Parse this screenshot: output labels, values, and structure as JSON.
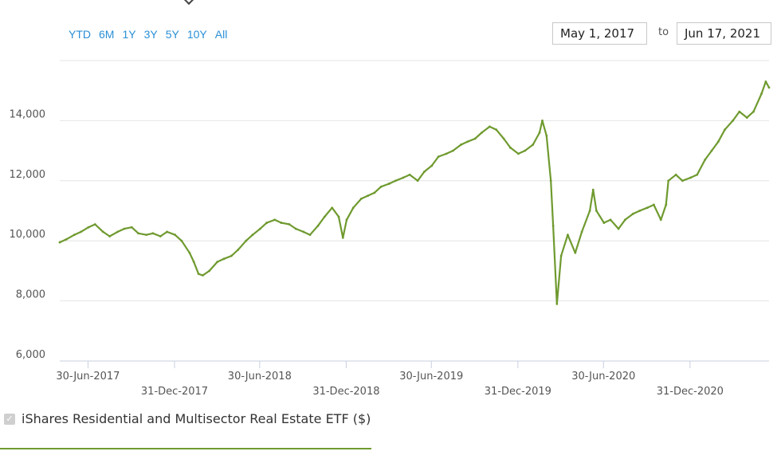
{
  "range_buttons": [
    "YTD",
    "6M",
    "1Y",
    "3Y",
    "5Y",
    "10Y",
    "All"
  ],
  "date_range": {
    "from": "May 1, 2017",
    "to_label": "to",
    "to": "Jun 17, 2021"
  },
  "legend": {
    "label": "iShares Residential and Multisector Real Estate ETF ($)",
    "checked": true
  },
  "chart_data": {
    "type": "line",
    "title": "",
    "xlabel": "",
    "ylabel": "",
    "ylim": [
      6000,
      16000
    ],
    "yticks": [
      "6,000",
      "8,000",
      "10,000",
      "12,000",
      "14,000"
    ],
    "xticks": [
      "30-Jun-2017",
      "31-Dec-2017",
      "30-Jun-2018",
      "31-Dec-2018",
      "30-Jun-2019",
      "31-Dec-2019",
      "30-Jun-2020",
      "31-Dec-2020"
    ],
    "xlim": [
      "2017-05-01",
      "2021-06-17"
    ],
    "grid": true,
    "line_color": "#6f9a2f",
    "series": [
      {
        "name": "iShares Residential and Multisector Real Estate ETF ($)",
        "x": [
          "2017-05-01",
          "2017-05-15",
          "2017-06-01",
          "2017-06-15",
          "2017-07-01",
          "2017-07-15",
          "2017-08-01",
          "2017-08-15",
          "2017-09-01",
          "2017-09-15",
          "2017-10-01",
          "2017-10-15",
          "2017-11-01",
          "2017-11-15",
          "2017-12-01",
          "2017-12-15",
          "2018-01-01",
          "2018-01-15",
          "2018-02-01",
          "2018-02-10",
          "2018-02-20",
          "2018-03-01",
          "2018-03-15",
          "2018-04-01",
          "2018-04-15",
          "2018-05-01",
          "2018-05-15",
          "2018-06-01",
          "2018-06-15",
          "2018-07-01",
          "2018-07-15",
          "2018-08-01",
          "2018-08-15",
          "2018-09-01",
          "2018-09-15",
          "2018-10-01",
          "2018-10-15",
          "2018-11-01",
          "2018-11-15",
          "2018-12-01",
          "2018-12-15",
          "2018-12-24",
          "2019-01-01",
          "2019-01-15",
          "2019-02-01",
          "2019-02-15",
          "2019-03-01",
          "2019-03-15",
          "2019-04-01",
          "2019-04-15",
          "2019-05-01",
          "2019-05-15",
          "2019-06-01",
          "2019-06-15",
          "2019-07-01",
          "2019-07-15",
          "2019-08-01",
          "2019-08-15",
          "2019-09-01",
          "2019-09-15",
          "2019-10-01",
          "2019-10-15",
          "2019-11-01",
          "2019-11-15",
          "2019-12-01",
          "2019-12-15",
          "2020-01-01",
          "2020-01-15",
          "2020-02-01",
          "2020-02-15",
          "2020-02-21",
          "2020-03-01",
          "2020-03-10",
          "2020-03-15",
          "2020-03-23",
          "2020-04-01",
          "2020-04-15",
          "2020-05-01",
          "2020-05-15",
          "2020-06-01",
          "2020-06-08",
          "2020-06-15",
          "2020-07-01",
          "2020-07-15",
          "2020-08-01",
          "2020-08-15",
          "2020-09-01",
          "2020-09-15",
          "2020-10-01",
          "2020-10-15",
          "2020-10-30",
          "2020-11-10",
          "2020-11-15",
          "2020-12-01",
          "2020-12-15",
          "2021-01-01",
          "2021-01-15",
          "2021-02-01",
          "2021-02-15",
          "2021-03-01",
          "2021-03-15",
          "2021-04-01",
          "2021-04-15",
          "2021-05-01",
          "2021-05-15",
          "2021-06-01",
          "2021-06-10",
          "2021-06-17"
        ],
        "values": [
          9950,
          10050,
          10200,
          10300,
          10450,
          10550,
          10300,
          10150,
          10300,
          10400,
          10450,
          10250,
          10200,
          10250,
          10150,
          10300,
          10200,
          10000,
          9600,
          9300,
          8900,
          8850,
          9000,
          9300,
          9400,
          9500,
          9700,
          10000,
          10200,
          10400,
          10600,
          10700,
          10600,
          10550,
          10400,
          10300,
          10200,
          10500,
          10800,
          11100,
          10800,
          10100,
          10700,
          11100,
          11400,
          11500,
          11600,
          11800,
          11900,
          12000,
          12100,
          12200,
          12000,
          12300,
          12500,
          12800,
          12900,
          13000,
          13200,
          13300,
          13400,
          13600,
          13800,
          13700,
          13400,
          13100,
          12900,
          13000,
          13200,
          13600,
          14000,
          13500,
          12000,
          10500,
          7900,
          9500,
          10200,
          9600,
          10300,
          11000,
          11700,
          11000,
          10600,
          10700,
          10400,
          10700,
          10900,
          11000,
          11100,
          11200,
          10700,
          11200,
          12000,
          12200,
          12000,
          12100,
          12200,
          12700,
          13000,
          13300,
          13700,
          14000,
          14300,
          14100,
          14300,
          14900,
          15300,
          15100
        ]
      }
    ]
  }
}
